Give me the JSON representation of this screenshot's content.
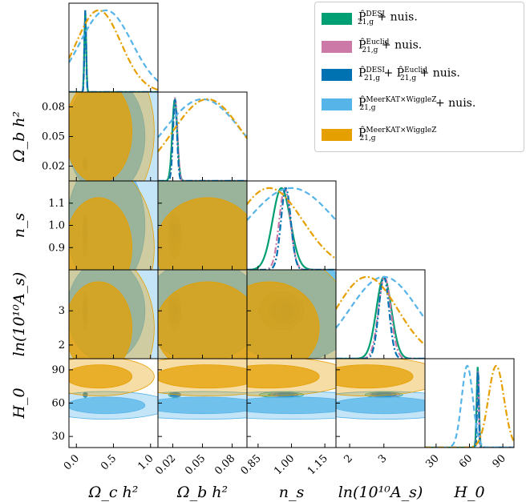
{
  "chart_data": {
    "type": "corner",
    "parameters": [
      {
        "key": "omc",
        "label": "Ω_c h²",
        "ticks": [
          0.0,
          0.5,
          1.0
        ],
        "tick_labels": [
          "0.0",
          "0.5",
          "1.0"
        ],
        "range": [
          -0.1,
          1.1
        ]
      },
      {
        "key": "omb",
        "label": "Ω_b h²",
        "ticks": [
          0.02,
          0.05,
          0.08
        ],
        "tick_labels": [
          "0.02",
          "0.05",
          "0.08"
        ],
        "range": [
          0.005,
          0.095
        ]
      },
      {
        "key": "ns",
        "label": "n_s",
        "ticks": [
          0.85,
          1.0,
          1.15
        ],
        "tick_labels": [
          "0.85",
          "1.00",
          "1.15"
        ],
        "range": [
          0.8,
          1.2
        ]
      },
      {
        "key": "lnAs",
        "label": "ln(10¹⁰A_s)",
        "ticks": [
          2,
          3
        ],
        "tick_labels": [
          "2",
          "3"
        ],
        "range": [
          1.6,
          4.2
        ]
      },
      {
        "key": "H0",
        "label": "H_0",
        "ticks": [
          30,
          60,
          90
        ],
        "tick_labels": [
          "30",
          "60",
          "90"
        ],
        "range": [
          20,
          100
        ]
      }
    ],
    "y_tick_labels": {
      "omb": [
        "0.02",
        "0.05",
        "0.08"
      ],
      "ns": [
        "0.9",
        "1.0",
        "1.1"
      ],
      "lnAs": [
        "2",
        "3"
      ],
      "H0": [
        "30",
        "60",
        "90"
      ]
    },
    "y_ticks": {
      "omb": [
        0.02,
        0.05,
        0.08
      ],
      "ns": [
        0.9,
        1.0,
        1.1
      ],
      "lnAs": [
        2,
        3
      ],
      "H0": [
        30,
        60,
        90
      ]
    },
    "series": [
      {
        "name": "P̂21,g DESI + nuis.",
        "color": "#009e73",
        "line": "solid",
        "mean": {
          "omc": 0.12,
          "omb": 0.022,
          "ns": 0.955,
          "lnAs": 3.0,
          "H0": 67.5
        },
        "sigma": {
          "omc": 0.012,
          "omb": 0.0025,
          "ns": 0.04,
          "lnAs": 0.22,
          "H0": 1.0
        }
      },
      {
        "name": "P̂21,g Euclid + nuis.",
        "color": "#cc79a7",
        "line": "dashdot",
        "mean": {
          "omc": 0.12,
          "omb": 0.0225,
          "ns": 0.97,
          "lnAs": 3.02,
          "H0": 67.6
        },
        "sigma": {
          "omc": 0.012,
          "omb": 0.0022,
          "ns": 0.025,
          "lnAs": 0.18,
          "H0": 0.8
        }
      },
      {
        "name": "P̂21,g DESI + P̂21,g Euclid + nuis.",
        "color": "#0072b2",
        "line": "dashdot",
        "mean": {
          "omc": 0.12,
          "omb": 0.0222,
          "ns": 0.975,
          "lnAs": 3.0,
          "H0": 67.6
        },
        "sigma": {
          "omc": 0.011,
          "omb": 0.002,
          "ns": 0.022,
          "lnAs": 0.15,
          "H0": 0.7
        }
      },
      {
        "name": "P̂21,g MeerKAT×WiggleZ + nuis.",
        "color": "#56b4e9",
        "line": "dashed",
        "mean": {
          "omc": 0.4,
          "omb": 0.05,
          "ns": 1.0,
          "lnAs": 3.0,
          "H0": 58
        },
        "sigma": {
          "omc": 0.35,
          "omb": 0.04,
          "ns": 0.2,
          "lnAs": 1.0,
          "H0": 5.0
        }
      },
      {
        "name": "P̂21,g MeerKAT×WiggleZ",
        "color": "#e69f00",
        "line": "dashdot",
        "mean": {
          "omc": 0.3,
          "omb": 0.055,
          "ns": 0.9,
          "lnAs": 2.5,
          "H0": 84
        },
        "sigma": {
          "omc": 0.3,
          "omb": 0.035,
          "ns": 0.15,
          "lnAs": 0.9,
          "H0": 7.0
        }
      }
    ]
  },
  "legend": {
    "entries": [
      {
        "color": "#009e73",
        "base": "P̂",
        "sup": "DESI",
        "sub": "21,g",
        "rest": " + nuis."
      },
      {
        "color": "#cc79a7",
        "base": "P̂",
        "sup": "Euclid",
        "sub": "21,g",
        "rest": " + nuis."
      },
      {
        "color": "#0072b2",
        "base": "P̂",
        "sup": "DESI",
        "sub": "21,g",
        "mid": " + ",
        "base2": "P̂",
        "sup2": "Euclid",
        "sub2": "21,g",
        "rest": " + nuis."
      },
      {
        "color": "#56b4e9",
        "base": "P̂",
        "sup": "MeerKAT×WiggleZ",
        "sub": "21,g",
        "rest": " + nuis."
      },
      {
        "color": "#e69f00",
        "base": "P̂",
        "sup": "MeerKAT×WiggleZ",
        "sub": "21,g",
        "rest": ""
      }
    ]
  }
}
